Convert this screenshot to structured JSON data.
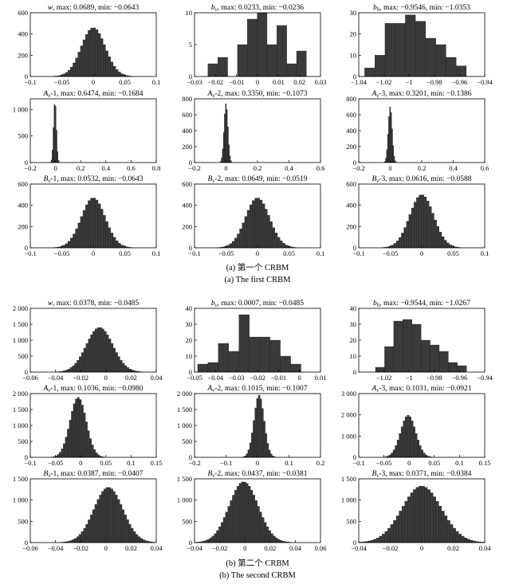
{
  "figure_a": {
    "caption_cn": "(a) 第一个 CRBM",
    "caption_en": "(a) The first CRBM"
  },
  "figure_b": {
    "caption_cn": "(b) 第二个 CRBM",
    "caption_en": "(b) The second CRBM"
  },
  "colors": {
    "bar": "#3a3a3a",
    "bar_edge": "#111111",
    "axis": "#000000"
  },
  "chart_data": [
    {
      "id": "a-w",
      "type": "bar",
      "title": "w, max: 0.0689, min: −0.0643",
      "title_sym": "w",
      "title_sub": "",
      "title_rest": ", max: 0.0689, min: −0.0643",
      "xlim": [
        -0.1,
        0.1
      ],
      "ylim": [
        0,
        600
      ],
      "xticks": [
        "−0.1",
        "−0.05",
        "0",
        "0.05",
        "0.1"
      ],
      "xtick_values": [
        -0.1,
        -0.05,
        0,
        0.05,
        0.1
      ],
      "yticks": [
        "0",
        "200",
        "400",
        "600"
      ],
      "ytick_values": [
        0,
        200,
        400,
        600
      ],
      "dist": "gauss",
      "peak": 460,
      "mean": 0,
      "sd": 0.019,
      "bin": 0.004,
      "min": -0.0643,
      "max": 0.0689
    },
    {
      "id": "a-bv",
      "type": "bar",
      "title": "bv, max: 0.0233, min: −0.0236",
      "title_sym": "b",
      "title_sub": "v",
      "title_rest": ", max: 0.0233, min: −0.0236",
      "xlim": [
        -0.03,
        0.03
      ],
      "ylim": [
        0,
        10
      ],
      "xticks": [
        "−0.03",
        "−0.02",
        "−0.01",
        "0",
        "0.01",
        "0.02",
        "0.03"
      ],
      "xtick_values": [
        -0.03,
        -0.02,
        -0.01,
        0,
        0.01,
        0.02,
        0.03
      ],
      "yticks": [
        "0",
        "5",
        "10"
      ],
      "ytick_values": [
        0,
        5,
        10
      ],
      "dist": "bars",
      "x0": -0.0236,
      "bin": 0.00469,
      "values": [
        2,
        3,
        0,
        5,
        9,
        10,
        5,
        8,
        2,
        4
      ]
    },
    {
      "id": "a-bh",
      "type": "bar",
      "title": "bh, max: −0.9546, min: −1.0353",
      "title_sym": "b",
      "title_sub": "h",
      "title_rest": ", max: −0.9546, min: −1.0353",
      "xlim": [
        -1.04,
        -0.94
      ],
      "ylim": [
        0,
        30
      ],
      "xticks": [
        "−1.04",
        "−1.02",
        "−1",
        "−0.98",
        "−0.96",
        "−0.94"
      ],
      "xtick_values": [
        -1.04,
        -1.02,
        -1,
        -0.98,
        -0.96,
        -0.94
      ],
      "yticks": [
        "0",
        "10",
        "20",
        "30"
      ],
      "ytick_values": [
        0,
        10,
        20,
        30
      ],
      "dist": "bars",
      "x0": -1.0353,
      "bin": 0.00807,
      "values": [
        4,
        10,
        25,
        25,
        29,
        26,
        18,
        15,
        9,
        5
      ]
    },
    {
      "id": "a-av1",
      "type": "bar",
      "title": "Av-1, max: 0.6474, min: −0.1684",
      "title_sym": "A",
      "title_sub": "v",
      "title_rest": "-1, max: 0.6474, min: −0.1684",
      "xlim": [
        -0.2,
        0.8
      ],
      "ylim": [
        0,
        1200
      ],
      "xticks": [
        "−0.2",
        "0",
        "0.2",
        "0.4",
        "0.6",
        "0.8"
      ],
      "xtick_values": [
        -0.2,
        0,
        0.2,
        0.4,
        0.6,
        0.8
      ],
      "yticks": [
        "0",
        "500",
        "1 000"
      ],
      "ytick_values": [
        0,
        500,
        1000
      ],
      "dist": "gauss",
      "peak": 1150,
      "mean": -0.004,
      "sd": 0.011,
      "bin": 0.008,
      "min": -0.1684,
      "max": 0.6474
    },
    {
      "id": "a-av2",
      "type": "bar",
      "title": "Av-2, max: 0.3350, min: −0.1073",
      "title_sym": "A",
      "title_sub": "v",
      "title_rest": "-2, max: 0.3350, min: −0.1073",
      "xlim": [
        -0.2,
        0.6
      ],
      "ylim": [
        0,
        800
      ],
      "xticks": [
        "−0.2",
        "0",
        "0.2",
        "0.4",
        "0.6"
      ],
      "xtick_values": [
        -0.2,
        0,
        0.2,
        0.4,
        0.6
      ],
      "yticks": [
        "0",
        "200",
        "400",
        "600",
        "800"
      ],
      "ytick_values": [
        0,
        200,
        400,
        600,
        800
      ],
      "dist": "gauss",
      "peak": 740,
      "mean": 0,
      "sd": 0.012,
      "bin": 0.0065,
      "min": -0.1073,
      "max": 0.335
    },
    {
      "id": "a-av3",
      "type": "bar",
      "title": "Av-3, max: 0.3201, min: −0.1386",
      "title_sym": "A",
      "title_sub": "v",
      "title_rest": "-3, max: 0.3201, min: −0.1386",
      "xlim": [
        -0.2,
        0.6
      ],
      "ylim": [
        0,
        800
      ],
      "xticks": [
        "−0.2",
        "0",
        "0.2",
        "0.4",
        "0.6"
      ],
      "xtick_values": [
        -0.2,
        0,
        0.2,
        0.4,
        0.6
      ],
      "yticks": [
        "0",
        "200",
        "400",
        "600",
        "800"
      ],
      "ytick_values": [
        0,
        200,
        400,
        600,
        800
      ],
      "dist": "gauss",
      "peak": 700,
      "mean": 0,
      "sd": 0.012,
      "bin": 0.0065,
      "min": -0.1386,
      "max": 0.3201
    },
    {
      "id": "a-bv1",
      "type": "bar",
      "title": "Bv-1, max: 0.0532, min: −0.0643",
      "title_sym": "B",
      "title_sub": "v",
      "title_rest": "-1, max: 0.0532, min: −0.0643",
      "xlim": [
        -0.1,
        0.1
      ],
      "ylim": [
        0,
        600
      ],
      "xticks": [
        "−0.1",
        "−0.05",
        "0",
        "0.05",
        "0.1"
      ],
      "xtick_values": [
        -0.1,
        -0.05,
        0,
        0.05,
        0.1
      ],
      "yticks": [
        "0",
        "200",
        "400",
        "600"
      ],
      "ytick_values": [
        0,
        200,
        400,
        600
      ],
      "dist": "gauss",
      "peak": 470,
      "mean": 0,
      "sd": 0.019,
      "bin": 0.004,
      "min": -0.0643,
      "max": 0.0532
    },
    {
      "id": "a-bv2",
      "type": "bar",
      "title": "Bv-2, max: 0.0649, min: −0.0519",
      "title_sym": "B",
      "title_sub": "v",
      "title_rest": "-2, max: 0.0649, min: −0.0519",
      "xlim": [
        -0.1,
        0.1
      ],
      "ylim": [
        0,
        600
      ],
      "xticks": [
        "−0.1",
        "−0.05",
        "0",
        "0.05",
        "0.1"
      ],
      "xtick_values": [
        -0.1,
        -0.05,
        0,
        0.05,
        0.1
      ],
      "yticks": [
        "0",
        "200",
        "400",
        "600"
      ],
      "ytick_values": [
        0,
        200,
        400,
        600
      ],
      "dist": "gauss",
      "peak": 470,
      "mean": 0,
      "sd": 0.019,
      "bin": 0.004,
      "min": -0.0519,
      "max": 0.0649
    },
    {
      "id": "a-bv3",
      "type": "bar",
      "title": "Bv-3, max: 0.0616, min: −0.0588",
      "title_sym": "B",
      "title_sub": "v",
      "title_rest": "-3, max: 0.0616, min: −0.0588",
      "xlim": [
        -0.1,
        0.1
      ],
      "ylim": [
        0,
        600
      ],
      "xticks": [
        "−0.1",
        "−0.05",
        "0",
        "0.05",
        "0.1"
      ],
      "xtick_values": [
        -0.1,
        -0.05,
        0,
        0.05,
        0.1
      ],
      "yticks": [
        "0",
        "200",
        "400",
        "600"
      ],
      "ytick_values": [
        0,
        200,
        400,
        600
      ],
      "dist": "gauss",
      "peak": 500,
      "mean": 0,
      "sd": 0.019,
      "bin": 0.004,
      "min": -0.0588,
      "max": 0.0616
    },
    {
      "id": "b-w",
      "type": "bar",
      "title": "w, max: 0.0378, min: −0.0485",
      "title_sym": "w",
      "title_sub": "",
      "title_rest": ", max: 0.0378, min: −0.0485",
      "xlim": [
        -0.06,
        0.04
      ],
      "ylim": [
        0,
        2000
      ],
      "xticks": [
        "−0.06",
        "−0.04",
        "−0.02",
        "0",
        "0.02",
        "0.04"
      ],
      "xtick_values": [
        -0.06,
        -0.04,
        -0.02,
        0,
        0.02,
        0.04
      ],
      "yticks": [
        "0",
        "500",
        "1 000",
        "1 500",
        "2 000"
      ],
      "ytick_values": [
        0,
        500,
        1000,
        1500,
        2000
      ],
      "dist": "gauss",
      "peak": 1400,
      "mean": -0.005,
      "sd": 0.0105,
      "bin": 0.0018,
      "min": -0.0485,
      "max": 0.0378
    },
    {
      "id": "b-bv",
      "type": "bar",
      "title": "bv, max: 0.0007, min: −0.0485",
      "title_sym": "b",
      "title_sub": "v",
      "title_rest": ", max: 0.0007, min: −0.0485",
      "xlim": [
        -0.05,
        0.01
      ],
      "ylim": [
        0,
        40
      ],
      "xticks": [
        "−0.05",
        "−0.04",
        "−0.03",
        "−0.02",
        "−0.01",
        "0",
        "0.01"
      ],
      "xtick_values": [
        -0.05,
        -0.04,
        -0.03,
        -0.02,
        -0.01,
        0,
        0.01
      ],
      "yticks": [
        "0",
        "10",
        "20",
        "30",
        "40"
      ],
      "ytick_values": [
        0,
        10,
        20,
        30,
        40
      ],
      "dist": "bars",
      "x0": -0.0485,
      "bin": 0.00492,
      "values": [
        5,
        6,
        18,
        13,
        36,
        22,
        22,
        20,
        10,
        5
      ]
    },
    {
      "id": "b-bh",
      "type": "bar",
      "title": "bh, max: −0.9544, min: −1.0267",
      "title_sym": "b",
      "title_sub": "h",
      "title_rest": ", max: −0.9544, min: −1.0267",
      "xlim": [
        -1.04,
        -0.94
      ],
      "ylim": [
        0,
        40
      ],
      "xticks": [
        "−1.02",
        "−1",
        "−0.98",
        "−0.96",
        "−0.94"
      ],
      "xtick_values": [
        -1.02,
        -1,
        -0.98,
        -0.96,
        -0.94
      ],
      "yticks": [
        "0",
        "10",
        "20",
        "30",
        "40"
      ],
      "ytick_values": [
        0,
        10,
        20,
        30,
        40
      ],
      "dist": "bars",
      "x0": -1.0267,
      "bin": 0.00723,
      "values": [
        3,
        16,
        32,
        33,
        30,
        20,
        17,
        13,
        6,
        4
      ]
    },
    {
      "id": "b-av1",
      "type": "bar",
      "title": "Av-1, max: 0.1036, min: −0.0980",
      "title_sym": "A",
      "title_sub": "v",
      "title_rest": "-1, max: 0.1036, min: −0.0980",
      "xlim": [
        -0.1,
        0.15
      ],
      "ylim": [
        0,
        2000
      ],
      "xticks": [
        "−0.1",
        "−0.05",
        "0",
        "0.05",
        "0.1",
        "0.15"
      ],
      "xtick_values": [
        -0.1,
        -0.05,
        0,
        0.05,
        0.1,
        0.15
      ],
      "yticks": [
        "0",
        "500",
        "1 000",
        "1 500",
        "2 000"
      ],
      "ytick_values": [
        0,
        500,
        1000,
        1500,
        2000
      ],
      "dist": "gauss",
      "peak": 1880,
      "mean": -0.005,
      "sd": 0.016,
      "bin": 0.004,
      "min": -0.098,
      "max": 0.1036
    },
    {
      "id": "b-av2",
      "type": "bar",
      "title": "Av-2, max: 0.1015, min: −0.1007",
      "title_sym": "A",
      "title_sub": "v",
      "title_rest": "-2, max: 0.1015, min: −0.1007",
      "xlim": [
        -0.2,
        0.2
      ],
      "ylim": [
        0,
        2000
      ],
      "xticks": [
        "−0.2",
        "−0.1",
        "0",
        "0.1",
        "0.2"
      ],
      "xtick_values": [
        -0.2,
        -0.1,
        0,
        0.1,
        0.2
      ],
      "yticks": [
        "0",
        "500",
        "1 000",
        "1 500",
        "2 000"
      ],
      "ytick_values": [
        0,
        500,
        1000,
        1500,
        2000
      ],
      "dist": "gauss",
      "peak": 1950,
      "mean": 0.005,
      "sd": 0.016,
      "bin": 0.0055,
      "min": -0.1007,
      "max": 0.1015
    },
    {
      "id": "b-av3",
      "type": "bar",
      "title": "Av-3, max: 0.1031, min: −0.0921",
      "title_sym": "A",
      "title_sub": "v",
      "title_rest": "-3, max: 0.1031, min: −0.0921",
      "xlim": [
        -0.1,
        0.15
      ],
      "ylim": [
        0,
        3000
      ],
      "xticks": [
        "−0.1",
        "−0.05",
        "0",
        "0.05",
        "0.1",
        "0.15"
      ],
      "xtick_values": [
        -0.1,
        -0.05,
        0,
        0.05,
        0.1,
        0.15
      ],
      "yticks": [
        "0",
        "1 000",
        "2 000",
        "3 000"
      ],
      "ytick_values": [
        0,
        1000,
        2000,
        3000
      ],
      "dist": "gauss",
      "peak": 1980,
      "mean": -0.002,
      "sd": 0.015,
      "bin": 0.004,
      "min": -0.0921,
      "max": 0.1031
    },
    {
      "id": "b-bv1",
      "type": "bar",
      "title": "Bv-1, max: 0.0387, min: −0.0407",
      "title_sym": "B",
      "title_sub": "v",
      "title_rest": "-1, max: 0.0387, min: −0.0407",
      "xlim": [
        -0.06,
        0.04
      ],
      "ylim": [
        0,
        1500
      ],
      "xticks": [
        "−0.06",
        "−0.04",
        "−0.02",
        "0",
        "0.02",
        "0.04"
      ],
      "xtick_values": [
        -0.06,
        -0.04,
        -0.02,
        0,
        0.02,
        0.04
      ],
      "yticks": [
        "0",
        "500",
        "1 000",
        "1 500"
      ],
      "ytick_values": [
        0,
        500,
        1000,
        1500
      ],
      "dist": "gauss",
      "peak": 1300,
      "mean": 0.002,
      "sd": 0.0115,
      "bin": 0.0018,
      "min": -0.0407,
      "max": 0.0387
    },
    {
      "id": "b-bv2",
      "type": "bar",
      "title": "Bv-2, max: 0.0437, min: −0.0381",
      "title_sym": "B",
      "title_sub": "v",
      "title_rest": "-2, max: 0.0437, min: −0.0381",
      "xlim": [
        -0.04,
        0.06
      ],
      "ylim": [
        0,
        1500
      ],
      "xticks": [
        "−0.04",
        "−0.02",
        "0",
        "0.02",
        "0.04",
        "0.06"
      ],
      "xtick_values": [
        -0.04,
        -0.02,
        0,
        0.02,
        0.04,
        0.06
      ],
      "yticks": [
        "0",
        "500",
        "1 000",
        "1 500"
      ],
      "ytick_values": [
        0,
        500,
        1000,
        1500
      ],
      "dist": "gauss",
      "peak": 1430,
      "mean": -0.001,
      "sd": 0.0115,
      "bin": 0.0018,
      "min": -0.0381,
      "max": 0.0437
    },
    {
      "id": "b-bv3",
      "type": "bar",
      "title": "Bv-3, max: 0.0371, min: −0.0384",
      "title_sym": "B",
      "title_sub": "v",
      "title_rest": "-3, max: 0.0371, min: −0.0384",
      "xlim": [
        -0.04,
        0.04
      ],
      "ylim": [
        0,
        1500
      ],
      "xticks": [
        "−0.04",
        "−0.02",
        "0",
        "0.02",
        "0.04"
      ],
      "xtick_values": [
        -0.04,
        -0.02,
        0,
        0.02,
        0.04
      ],
      "yticks": [
        "0",
        "500",
        "1 000",
        "1 500"
      ],
      "ytick_values": [
        0,
        500,
        1000,
        1500
      ],
      "dist": "gauss",
      "peak": 1330,
      "mean": 0,
      "sd": 0.0125,
      "bin": 0.0018,
      "min": -0.0384,
      "max": 0.0371
    }
  ]
}
